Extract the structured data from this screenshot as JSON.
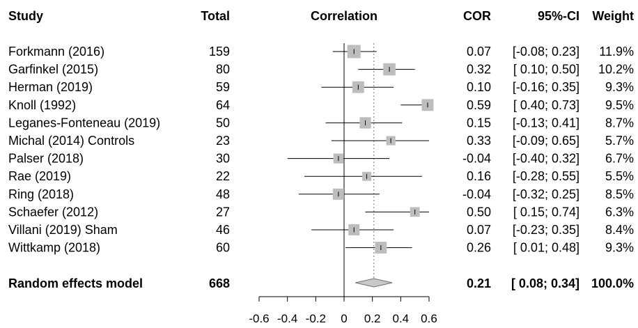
{
  "chart_data": {
    "type": "forest",
    "headers": {
      "study": "Study",
      "total": "Total",
      "plot": "Correlation",
      "cor": "COR",
      "ci": "95%-CI",
      "weight": "Weight"
    },
    "xlim": [
      -0.6,
      0.6
    ],
    "x_ticks": [
      -0.6,
      -0.4,
      -0.2,
      0,
      0.2,
      0.4,
      0.6
    ],
    "x_tick_labels": [
      "-0.6",
      "-0.4",
      "-0.2",
      "0",
      "0.2",
      "0.4",
      "0.6"
    ],
    "null_line": 0,
    "pooled_line": 0.21,
    "studies": [
      {
        "study": "Forkmann (2016)",
        "total": "159",
        "cor": 0.07,
        "lower": -0.08,
        "upper": 0.23,
        "weight": 11.9,
        "cor_text": "0.07",
        "ci_text": "[-0.08; 0.23]",
        "weight_text": "11.9%"
      },
      {
        "study": "Garfinkel (2015)",
        "total": "80",
        "cor": 0.32,
        "lower": 0.1,
        "upper": 0.5,
        "weight": 10.2,
        "cor_text": "0.32",
        "ci_text": "[ 0.10; 0.50]",
        "weight_text": "10.2%"
      },
      {
        "study": "Herman (2019)",
        "total": "59",
        "cor": 0.1,
        "lower": -0.16,
        "upper": 0.35,
        "weight": 9.3,
        "cor_text": "0.10",
        "ci_text": "[-0.16; 0.35]",
        "weight_text": "9.3%"
      },
      {
        "study": "Knoll (1992)",
        "total": "64",
        "cor": 0.59,
        "lower": 0.4,
        "upper": 0.73,
        "weight": 9.5,
        "cor_text": "0.59",
        "ci_text": "[ 0.40; 0.73]",
        "weight_text": "9.5%"
      },
      {
        "study": "Leganes-Fonteneau (2019)",
        "total": "50",
        "cor": 0.15,
        "lower": -0.13,
        "upper": 0.41,
        "weight": 8.7,
        "cor_text": "0.15",
        "ci_text": "[-0.13; 0.41]",
        "weight_text": "8.7%"
      },
      {
        "study": "Michal (2014) Controls",
        "total": "23",
        "cor": 0.33,
        "lower": -0.09,
        "upper": 0.65,
        "weight": 5.7,
        "cor_text": "0.33",
        "ci_text": "[-0.09; 0.65]",
        "weight_text": "5.7%"
      },
      {
        "study": "Palser (2018)",
        "total": "30",
        "cor": -0.04,
        "lower": -0.4,
        "upper": 0.32,
        "weight": 6.7,
        "cor_text": "-0.04",
        "ci_text": "[-0.40; 0.32]",
        "weight_text": "6.7%"
      },
      {
        "study": "Rae (2019)",
        "total": "22",
        "cor": 0.16,
        "lower": -0.28,
        "upper": 0.55,
        "weight": 5.5,
        "cor_text": "0.16",
        "ci_text": "[-0.28; 0.55]",
        "weight_text": "5.5%"
      },
      {
        "study": "Ring (2018)",
        "total": "48",
        "cor": -0.04,
        "lower": -0.32,
        "upper": 0.25,
        "weight": 8.5,
        "cor_text": "-0.04",
        "ci_text": "[-0.32; 0.25]",
        "weight_text": "8.5%"
      },
      {
        "study": "Schaefer (2012)",
        "total": "27",
        "cor": 0.5,
        "lower": 0.15,
        "upper": 0.74,
        "weight": 6.3,
        "cor_text": "0.50",
        "ci_text": "[ 0.15; 0.74]",
        "weight_text": "6.3%"
      },
      {
        "study": "Villani (2019) Sham",
        "total": "46",
        "cor": 0.07,
        "lower": -0.23,
        "upper": 0.35,
        "weight": 8.4,
        "cor_text": "0.07",
        "ci_text": "[-0.23; 0.35]",
        "weight_text": "8.4%"
      },
      {
        "study": "Wittkamp (2018)",
        "total": "60",
        "cor": 0.26,
        "lower": 0.01,
        "upper": 0.48,
        "weight": 9.3,
        "cor_text": "0.26",
        "ci_text": "[ 0.01; 0.48]",
        "weight_text": "9.3%"
      }
    ],
    "summary": {
      "label": "Random effects model",
      "total": "668",
      "cor": 0.21,
      "lower": 0.08,
      "upper": 0.34,
      "cor_text": "0.21",
      "ci_text": "[ 0.08; 0.34]",
      "weight_text": "100.0%"
    },
    "colors": {
      "box": "#bdbdbd",
      "diamond": "#c8c8c8",
      "line": "#000000",
      "pooled_line": "#8c8c8c"
    }
  }
}
